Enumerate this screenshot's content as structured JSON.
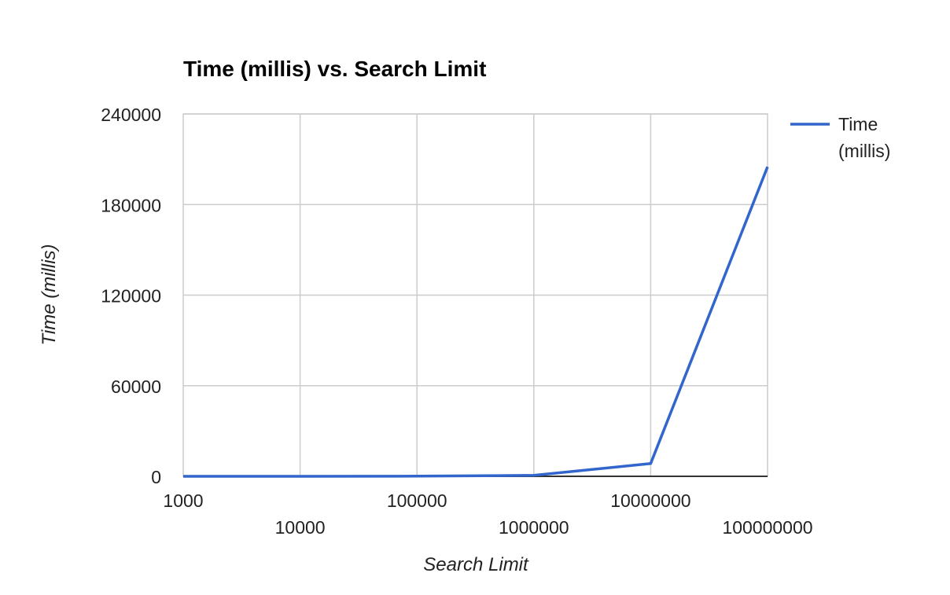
{
  "chart_data": {
    "type": "line",
    "title": "Time (millis) vs. Search Limit",
    "xlabel": "Search Limit",
    "ylabel": "Time (millis)",
    "x": [
      1000,
      10000,
      100000,
      1000000,
      10000000,
      100000000
    ],
    "x_tick_labels": [
      "1000",
      "10000",
      "100000",
      "1000000",
      "10000000",
      "100000000"
    ],
    "xscale": "log",
    "ylim": [
      0,
      240000
    ],
    "y_ticks": [
      0,
      60000,
      120000,
      180000,
      240000
    ],
    "y_tick_labels": [
      "0",
      "60000",
      "120000",
      "180000",
      "240000"
    ],
    "grid": true,
    "legend_position": "right",
    "series": [
      {
        "name": "Time\n(millis)",
        "color": "#3366cc",
        "values": [
          1,
          10,
          80,
          600,
          8500,
          205000
        ]
      }
    ]
  }
}
